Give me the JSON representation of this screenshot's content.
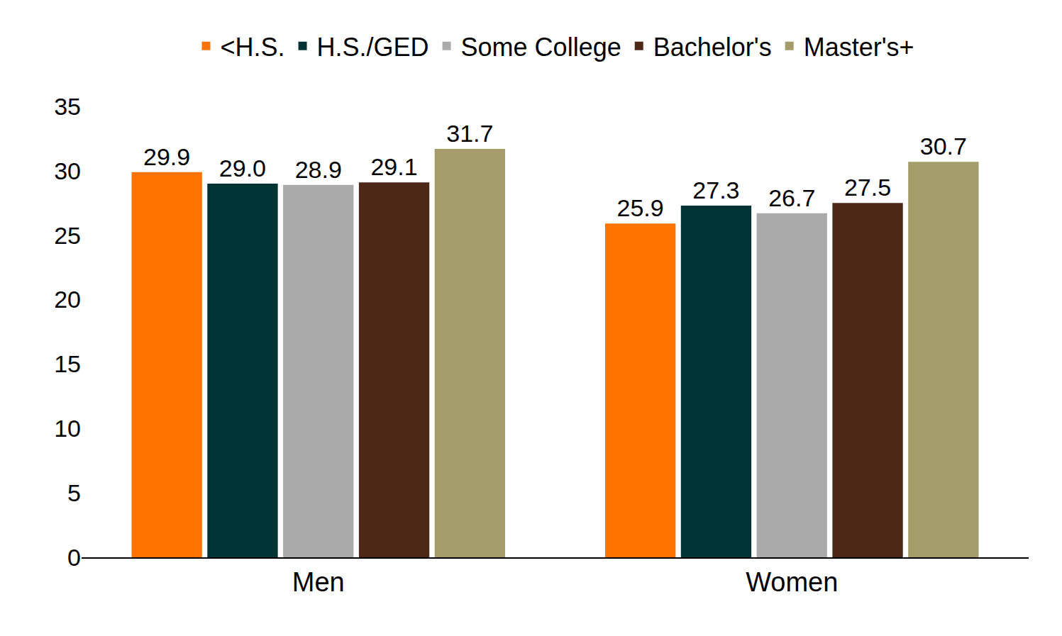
{
  "chart_data": {
    "type": "bar",
    "categories": [
      "Men",
      "Women"
    ],
    "series": [
      {
        "name": "<H.S.",
        "color": "#ff7300",
        "values": [
          29.9,
          25.9
        ],
        "value_labels": [
          "29.9",
          "25.9"
        ]
      },
      {
        "name": "H.S./GED",
        "color": "#003333",
        "values": [
          29.0,
          27.3
        ],
        "value_labels": [
          "29.0",
          "27.3"
        ]
      },
      {
        "name": "Some College",
        "color": "#aaaaaa",
        "values": [
          28.9,
          26.7
        ],
        "value_labels": [
          "28.9",
          "26.7"
        ]
      },
      {
        "name": "Bachelor's",
        "color": "#4d2818",
        "values": [
          29.1,
          27.5
        ],
        "value_labels": [
          "29.1",
          "27.5"
        ]
      },
      {
        "name": "Master's+",
        "color": "#a59c6b",
        "values": [
          31.7,
          30.7
        ],
        "value_labels": [
          "31.7",
          "30.7"
        ]
      }
    ],
    "ylim": [
      0,
      35
    ],
    "yticks": [
      0,
      5,
      10,
      15,
      20,
      25,
      30,
      35
    ],
    "grid": false,
    "legend": "top",
    "data_labels": true
  }
}
